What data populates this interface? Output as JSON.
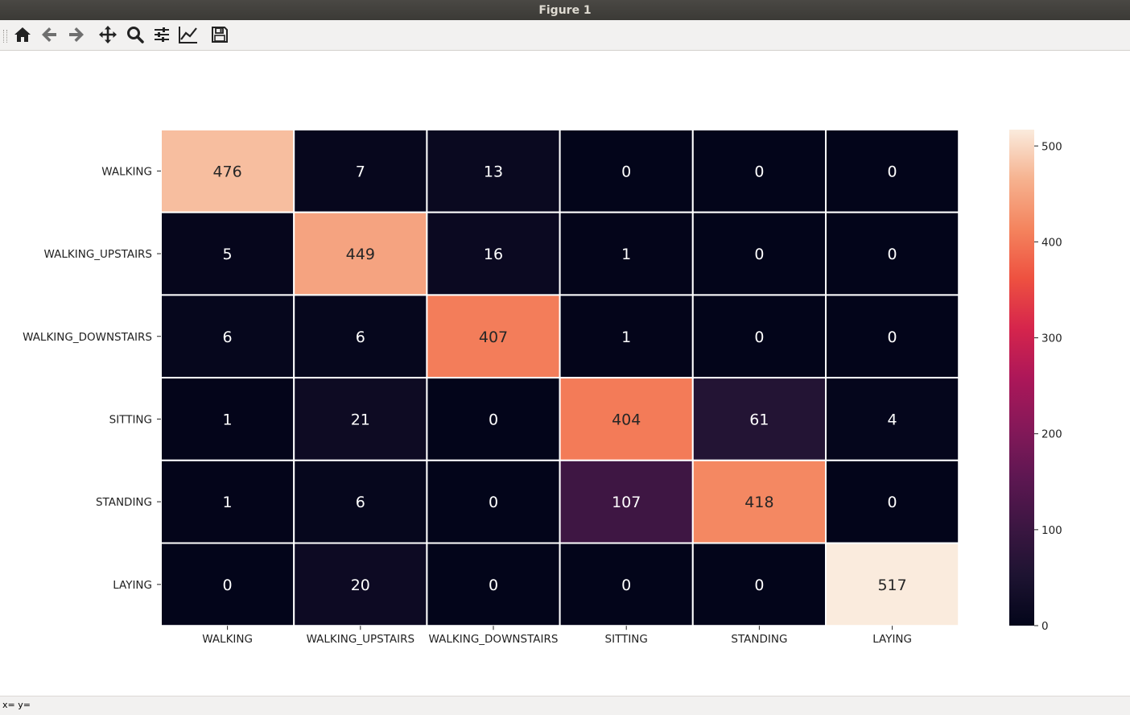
{
  "window": {
    "title": "Figure 1"
  },
  "toolbar": {
    "buttons": [
      {
        "name": "home-button",
        "icon": "home-icon"
      },
      {
        "name": "back-button",
        "icon": "arrow-left-icon"
      },
      {
        "name": "forward-button",
        "icon": "arrow-right-icon"
      },
      {
        "name": "pan-button",
        "icon": "move-icon"
      },
      {
        "name": "zoom-button",
        "icon": "magnifier-icon"
      },
      {
        "name": "configure-subplots-button",
        "icon": "sliders-icon"
      },
      {
        "name": "edit-axis-button",
        "icon": "line-chart-icon"
      },
      {
        "name": "save-button",
        "icon": "floppy-disk-icon"
      }
    ]
  },
  "status": {
    "text": "x= y="
  },
  "chart_data": {
    "type": "heatmap",
    "title": "",
    "xlabel": "",
    "ylabel": "",
    "colormap": "rocket",
    "row_labels": [
      "WALKING",
      "WALKING_UPSTAIRS",
      "WALKING_DOWNSTAIRS",
      "SITTING",
      "STANDING",
      "LAYING"
    ],
    "col_labels": [
      "WALKING",
      "WALKING_UPSTAIRS",
      "WALKING_DOWNSTAIRS",
      "SITTING",
      "STANDING",
      "LAYING"
    ],
    "values": [
      [
        476,
        7,
        13,
        0,
        0,
        0
      ],
      [
        5,
        449,
        16,
        1,
        0,
        0
      ],
      [
        6,
        6,
        407,
        1,
        0,
        0
      ],
      [
        1,
        21,
        0,
        404,
        61,
        4
      ],
      [
        1,
        6,
        0,
        107,
        418,
        0
      ],
      [
        0,
        20,
        0,
        0,
        0,
        517
      ]
    ],
    "vmin": 0,
    "vmax": 517,
    "colorbar_ticks": [
      0,
      100,
      200,
      300,
      400,
      500
    ],
    "cell_border_color": "#ffffff",
    "light_text_color": "#ffffff",
    "dark_text_color": "#262626"
  }
}
